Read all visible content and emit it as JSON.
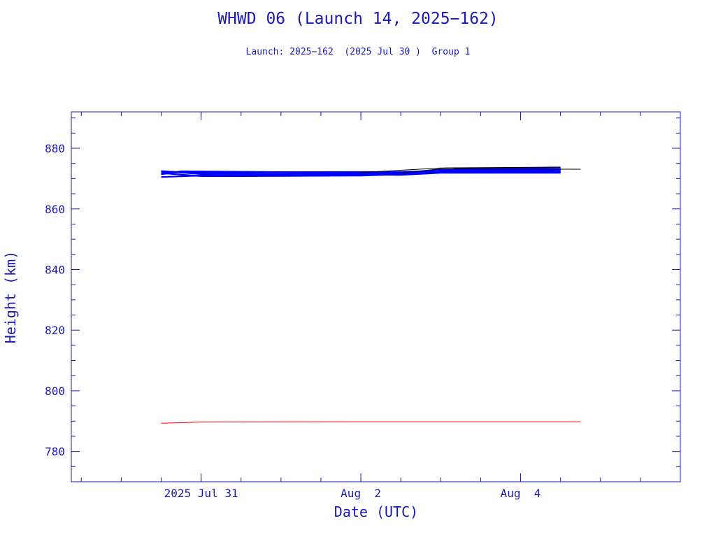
{
  "title": "WHWD 06 (Launch 14, 2025−162)",
  "subtitle": "Launch: 2025−162  (2025 Jul 30 )  Group 1",
  "chart_data": {
    "type": "line",
    "title": "WHWD 06 (Launch 14, 2025−162)",
    "subtitle": "Launch: 2025−162  (2025 Jul 30 )  Group 1",
    "xlabel": "Date (UTC)",
    "ylabel": "Height (km)",
    "x_unit": "days",
    "x_range": [
      "2025-07-29T09:00",
      "2025-08-06T00:00"
    ],
    "ylim": [
      770,
      892
    ],
    "y_ticks": [
      780,
      800,
      820,
      840,
      860,
      880
    ],
    "x_ticks": [
      {
        "date": "2025-07-31T00:00",
        "label": "2025 Jul 31"
      },
      {
        "date": "2025-08-02T00:00",
        "label": "Aug  2"
      },
      {
        "date": "2025-08-04T00:00",
        "label": "Aug  4"
      }
    ],
    "axis_color": "#1a1ab4",
    "series": [
      {
        "color": "#0000ff",
        "points": [
          [
            "2025-07-30T12:00",
            872.5
          ],
          [
            "2025-07-31T00:00",
            871.5
          ],
          [
            "2025-08-02T12:00",
            871.6
          ],
          [
            "2025-08-03T00:00",
            872.0
          ],
          [
            "2025-08-04T12:00",
            872.2
          ]
        ]
      },
      {
        "color": "#0000ff",
        "points": [
          [
            "2025-07-30T12:00",
            872.0
          ],
          [
            "2025-07-31T00:00",
            872.1
          ],
          [
            "2025-08-02T12:00",
            872.2
          ],
          [
            "2025-08-03T00:00",
            872.6
          ],
          [
            "2025-08-04T12:00",
            872.6
          ]
        ]
      },
      {
        "color": "#0000ff",
        "points": [
          [
            "2025-07-30T12:00",
            871.4
          ],
          [
            "2025-07-30T18:00",
            872.4
          ],
          [
            "2025-08-02T12:00",
            871.8
          ],
          [
            "2025-08-03T00:00",
            872.9
          ],
          [
            "2025-08-04T12:00",
            872.8
          ]
        ]
      },
      {
        "color": "#0000ff",
        "points": [
          [
            "2025-07-30T12:00",
            870.5
          ],
          [
            "2025-07-31T00:00",
            871.0
          ],
          [
            "2025-08-02T00:00",
            871.4
          ],
          [
            "2025-08-02T18:00",
            872.3
          ],
          [
            "2025-08-03T06:00",
            873.3
          ],
          [
            "2025-08-04T12:00",
            873.5
          ]
        ]
      },
      {
        "color": "#0000ff",
        "points": [
          [
            "2025-07-30T12:00",
            872.4
          ],
          [
            "2025-07-31T00:00",
            871.8
          ],
          [
            "2025-08-02T12:00",
            871.2
          ],
          [
            "2025-08-03T00:00",
            871.9
          ],
          [
            "2025-08-04T12:00",
            871.9
          ]
        ]
      },
      {
        "color": "#0000ff",
        "points": [
          [
            "2025-07-30T12:00",
            871.8
          ],
          [
            "2025-07-31T00:00",
            870.8
          ],
          [
            "2025-07-31T12:00",
            870.8
          ],
          [
            "2025-08-02T00:00",
            871.0
          ],
          [
            "2025-08-02T12:00",
            871.4
          ],
          [
            "2025-08-03T00:00",
            872.3
          ],
          [
            "2025-08-04T12:00",
            872.3
          ]
        ]
      },
      {
        "color": "#000000",
        "points": [
          [
            "2025-08-02T00:00",
            872.0
          ],
          [
            "2025-08-03T00:00",
            873.5
          ],
          [
            "2025-08-04T12:00",
            873.8
          ]
        ]
      },
      {
        "color": "#000000",
        "points": [
          [
            "2025-08-02T12:00",
            871.9
          ],
          [
            "2025-08-03T00:00",
            873.2
          ],
          [
            "2025-08-04T18:00",
            873.1
          ]
        ]
      },
      {
        "color": "#ff0000",
        "points": [
          [
            "2025-07-30T12:00",
            789.3
          ],
          [
            "2025-07-31T00:00",
            789.7
          ],
          [
            "2025-08-02T00:00",
            789.8
          ],
          [
            "2025-08-04T18:00",
            789.8
          ]
        ]
      }
    ]
  }
}
